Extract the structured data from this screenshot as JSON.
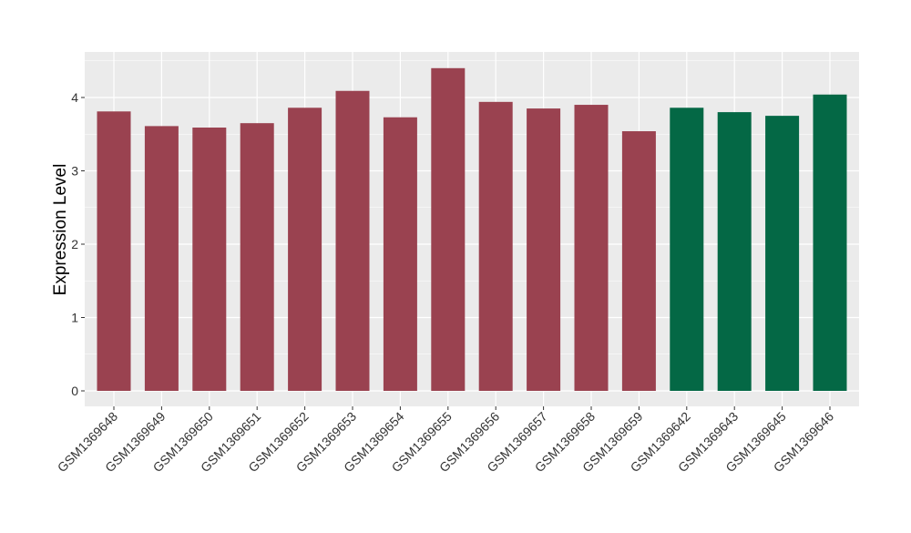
{
  "chart_data": {
    "type": "bar",
    "ylabel": "Expression Level",
    "xlabel": "",
    "title": "",
    "ylim": [
      -0.2,
      4.6
    ],
    "yticks": [
      0,
      1,
      2,
      3,
      4
    ],
    "grid": true,
    "categories": [
      "GSM1369648",
      "GSM1369649",
      "GSM1369650",
      "GSM1369651",
      "GSM1369652",
      "GSM1369653",
      "GSM1369654",
      "GSM1369655",
      "GSM1369656",
      "GSM1369657",
      "GSM1369658",
      "GSM1369659",
      "GSM1369642",
      "GSM1369643",
      "GSM1369645",
      "GSM1369646"
    ],
    "values": [
      3.81,
      3.61,
      3.59,
      3.65,
      3.86,
      4.09,
      3.73,
      4.4,
      3.94,
      3.85,
      3.9,
      3.54,
      3.86,
      3.8,
      3.75,
      4.04
    ],
    "groups": [
      0,
      0,
      0,
      0,
      0,
      0,
      0,
      0,
      0,
      0,
      0,
      0,
      1,
      1,
      1,
      1
    ],
    "colors": {
      "group0": "#9a4250",
      "group1": "#046845",
      "panel": "#ebebeb",
      "grid": "#ffffff",
      "text": "#333333"
    }
  }
}
